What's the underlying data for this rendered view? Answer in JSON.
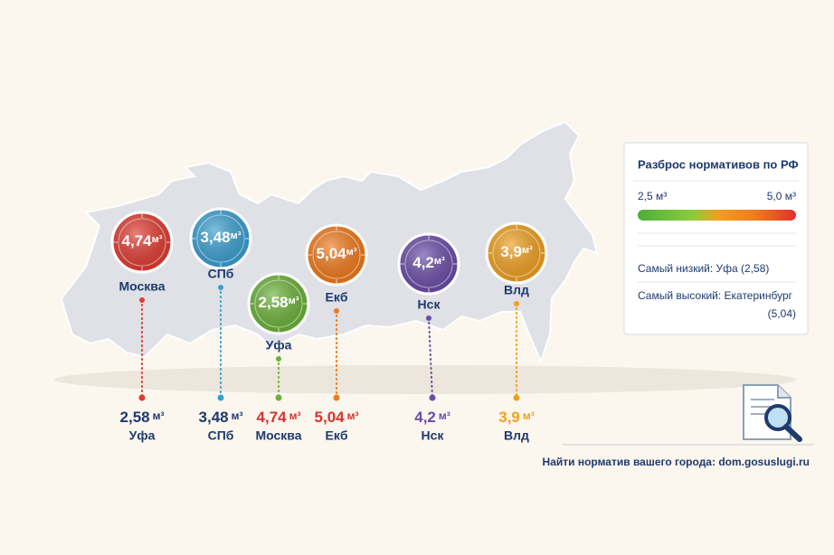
{
  "markers": [
    {
      "value": "4,74",
      "unit": "м³",
      "city": "Москва",
      "color": "#e03c31"
    },
    {
      "value": "3,48",
      "unit": "м³",
      "city": "СПб",
      "color": "#3a9fd0"
    },
    {
      "value": "2,58",
      "unit": "м³",
      "city": "Уфа",
      "color": "#6cb23a"
    },
    {
      "value": "5,04",
      "unit": "м³",
      "city": "Екб",
      "color": "#f07a1c"
    },
    {
      "value": "4,2",
      "unit": "м³",
      "city": "Нск",
      "color": "#6a4ca8"
    },
    {
      "value": "3,9",
      "unit": "м³",
      "city": "Влд",
      "color": "#f0a020"
    }
  ],
  "bottom_row": [
    {
      "value": "2,58",
      "unit": "м³",
      "city": "Уфа",
      "color": "#1e3a6e"
    },
    {
      "value": "3,48",
      "unit": "м³",
      "city": "СПб",
      "color": "#1e3a6e"
    },
    {
      "value": "4,74",
      "unit": "м³",
      "city": "Москва",
      "color": "#d8322a"
    },
    {
      "value": "5,04",
      "unit": "м³",
      "city": "Екб",
      "color": "#d8322a"
    },
    {
      "value": "4,2",
      "unit": "м³",
      "city": "Нск",
      "color": "#6a4ca8"
    },
    {
      "value": "3,9",
      "unit": "м³",
      "city": "Влд",
      "color": "#f0a020"
    }
  ],
  "panel": {
    "title": "Разброс нормативов по РФ",
    "scale_min": "2,5 м³",
    "scale_max": "5,0 м³",
    "lowest": "Самый низкий: Уфа (2,58)",
    "highest": [
      "Самый высокий: Екатеринбург",
      "(5,04)"
    ]
  },
  "footer": {
    "text": "Найти норматив вашего города:",
    "link": "dom.gosuslugi.ru"
  }
}
